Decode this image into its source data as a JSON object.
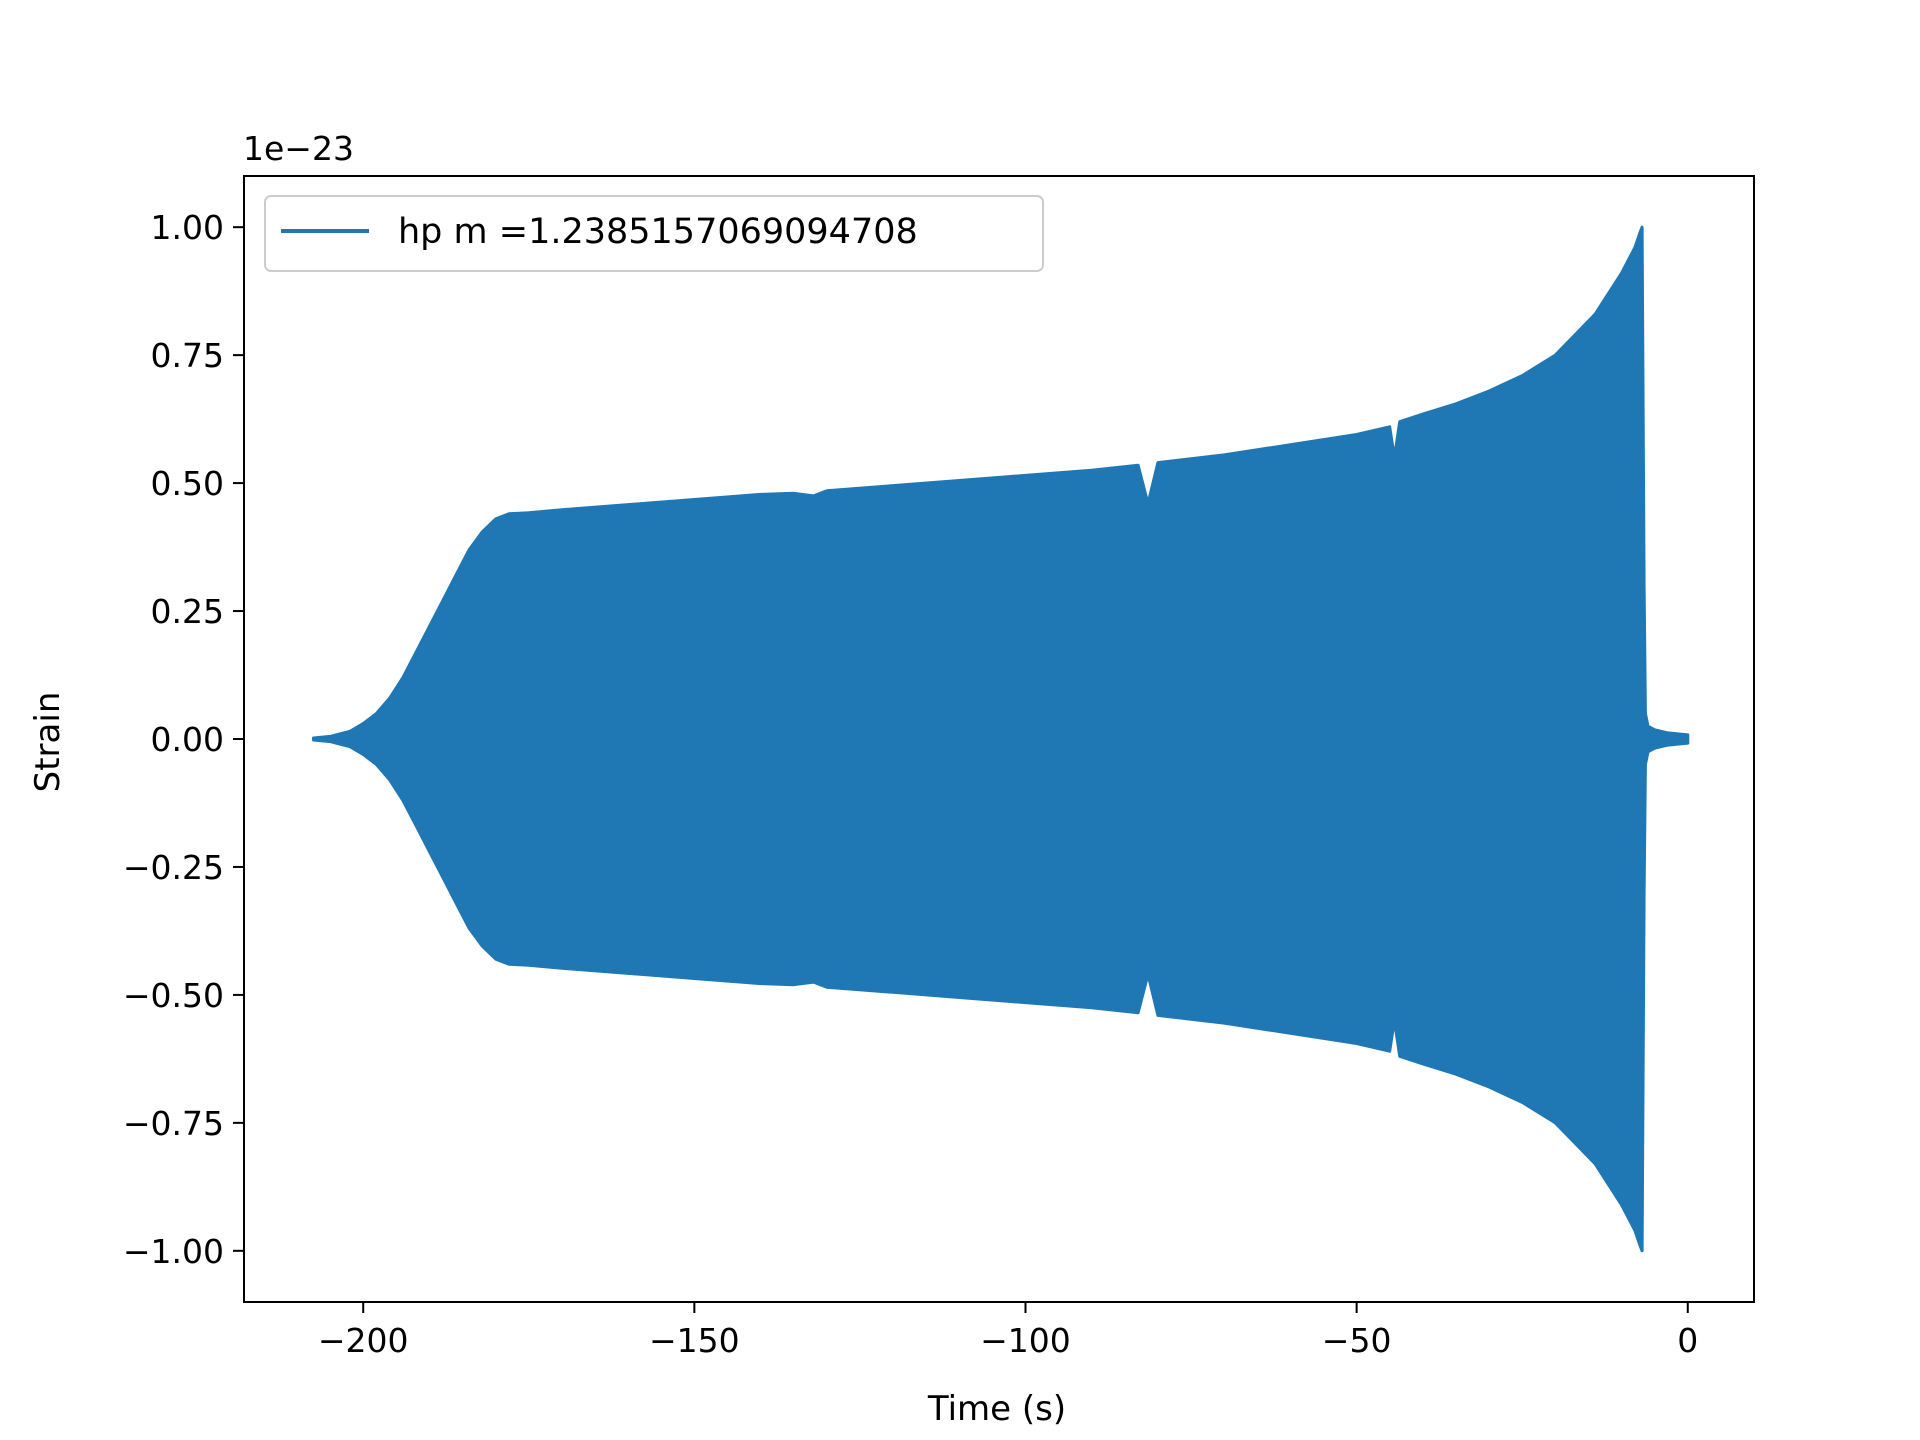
{
  "chart_data": {
    "type": "area",
    "title": "",
    "xlabel": "Time (s)",
    "ylabel": "Strain",
    "offset_text": "1e−23",
    "xlim": [
      -218,
      10
    ],
    "ylim": [
      -1.1,
      1.1
    ],
    "xticks": [
      {
        "value": -200,
        "label": "−200"
      },
      {
        "value": -150,
        "label": "−150"
      },
      {
        "value": -100,
        "label": "−100"
      },
      {
        "value": -50,
        "label": "−50"
      },
      {
        "value": 0,
        "label": "0"
      }
    ],
    "yticks": [
      {
        "value": 1.0,
        "label": "1.00"
      },
      {
        "value": 0.75,
        "label": "0.75"
      },
      {
        "value": 0.5,
        "label": "0.50"
      },
      {
        "value": 0.25,
        "label": "0.25"
      },
      {
        "value": 0.0,
        "label": "0.00"
      },
      {
        "value": -0.25,
        "label": "−0.25"
      },
      {
        "value": -0.5,
        "label": "−0.50"
      },
      {
        "value": -0.75,
        "label": "−0.75"
      },
      {
        "value": -1.0,
        "label": "−1.00"
      }
    ],
    "grid": false,
    "legend_position": "upper-left",
    "series": [
      {
        "name": "hp m =1.2385157069094708",
        "color": "#1f77b4",
        "envelope": [
          [
            -207.5,
            0.002
          ],
          [
            -205,
            0.005
          ],
          [
            -202,
            0.015
          ],
          [
            -200,
            0.03
          ],
          [
            -198,
            0.05
          ],
          [
            -196,
            0.08
          ],
          [
            -194,
            0.12
          ],
          [
            -192,
            0.17
          ],
          [
            -190,
            0.22
          ],
          [
            -188,
            0.27
          ],
          [
            -186,
            0.32
          ],
          [
            -184,
            0.37
          ],
          [
            -182,
            0.405
          ],
          [
            -180,
            0.43
          ],
          [
            -178,
            0.44
          ],
          [
            -175,
            0.442
          ],
          [
            -170,
            0.448
          ],
          [
            -160,
            0.458
          ],
          [
            -150,
            0.468
          ],
          [
            -140,
            0.478
          ],
          [
            -135,
            0.48
          ],
          [
            -132,
            0.475
          ],
          [
            -130,
            0.485
          ],
          [
            -120,
            0.495
          ],
          [
            -110,
            0.505
          ],
          [
            -100,
            0.515
          ],
          [
            -90,
            0.525
          ],
          [
            -83,
            0.535
          ],
          [
            -81.5,
            0.46
          ],
          [
            -80,
            0.54
          ],
          [
            -70,
            0.555
          ],
          [
            -60,
            0.575
          ],
          [
            -50,
            0.595
          ],
          [
            -45,
            0.61
          ],
          [
            -44.3,
            0.55
          ],
          [
            -43.5,
            0.62
          ],
          [
            -40,
            0.635
          ],
          [
            -35,
            0.655
          ],
          [
            -30,
            0.68
          ],
          [
            -25,
            0.71
          ],
          [
            -20,
            0.75
          ],
          [
            -17,
            0.79
          ],
          [
            -14,
            0.83
          ],
          [
            -12,
            0.87
          ],
          [
            -10,
            0.91
          ],
          [
            -8,
            0.96
          ],
          [
            -7.2,
            0.99
          ],
          [
            -6.9,
            1.0
          ],
          [
            -6.6,
            0.3
          ],
          [
            -6.4,
            0.05
          ],
          [
            -6,
            0.025
          ],
          [
            -5,
            0.018
          ],
          [
            -3,
            0.012
          ],
          [
            -1.5,
            0.01
          ],
          [
            0,
            0.008
          ]
        ]
      }
    ]
  }
}
